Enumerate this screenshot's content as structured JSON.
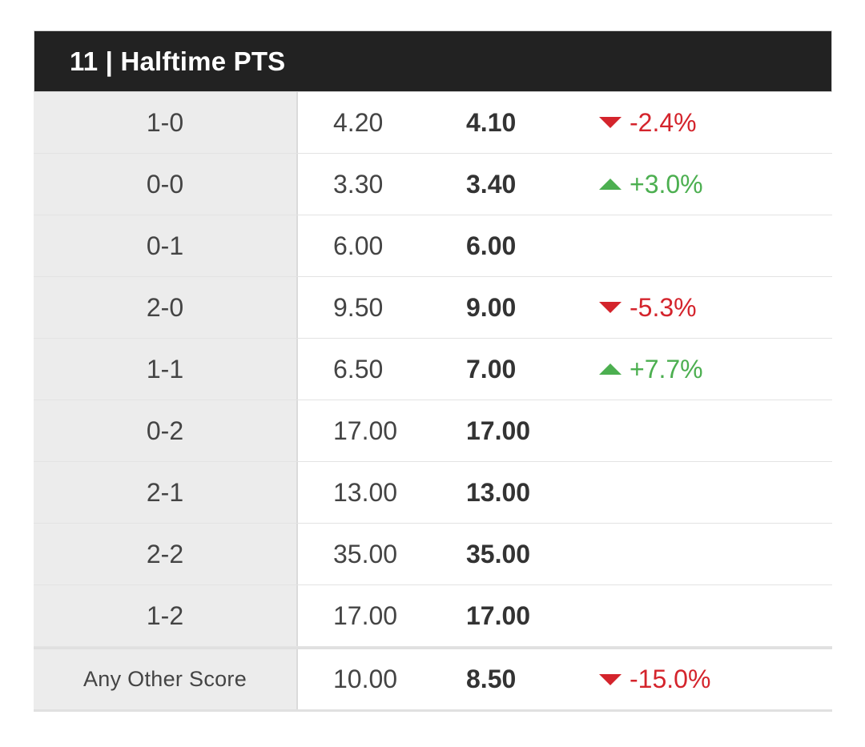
{
  "market": {
    "title": "11 | Halftime PTS"
  },
  "colors": {
    "header_bg": "#222222",
    "score_bg": "#ececec",
    "down": "#d4242c",
    "up": "#4caf50"
  },
  "rows": [
    {
      "score": "1-0",
      "prev": "4.20",
      "curr": "4.10",
      "change": "-2.4%",
      "direction": "down"
    },
    {
      "score": "0-0",
      "prev": "3.30",
      "curr": "3.40",
      "change": "+3.0%",
      "direction": "up"
    },
    {
      "score": "0-1",
      "prev": "6.00",
      "curr": "6.00",
      "change": "",
      "direction": "none"
    },
    {
      "score": "2-0",
      "prev": "9.50",
      "curr": "9.00",
      "change": "-5.3%",
      "direction": "down"
    },
    {
      "score": "1-1",
      "prev": "6.50",
      "curr": "7.00",
      "change": "+7.7%",
      "direction": "up"
    },
    {
      "score": "0-2",
      "prev": "17.00",
      "curr": "17.00",
      "change": "",
      "direction": "none"
    },
    {
      "score": "2-1",
      "prev": "13.00",
      "curr": "13.00",
      "change": "",
      "direction": "none"
    },
    {
      "score": "2-2",
      "prev": "35.00",
      "curr": "35.00",
      "change": "",
      "direction": "none"
    },
    {
      "score": "1-2",
      "prev": "17.00",
      "curr": "17.00",
      "change": "",
      "direction": "none"
    },
    {
      "score": "Any Other Score",
      "prev": "10.00",
      "curr": "8.50",
      "change": "-15.0%",
      "direction": "down"
    }
  ]
}
